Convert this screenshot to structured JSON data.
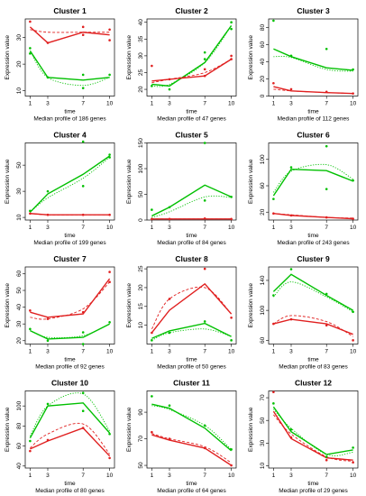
{
  "figure": {
    "colors": {
      "green": "#00c000",
      "red": "#e02020",
      "axis": "#000000"
    },
    "shared": {
      "xlabel": "time",
      "ylabel": "Expression value",
      "x_ticks": [
        1,
        3,
        7,
        10
      ]
    }
  },
  "chart_data": [
    {
      "type": "line",
      "title": "Cluster 1",
      "subtitle": "Median profile of  186  genes",
      "xlabel": "time",
      "ylabel": "Expression value",
      "x": [
        1,
        3,
        7,
        10
      ],
      "ylim": [
        8,
        37
      ],
      "yticks": [
        10,
        20,
        30
      ],
      "series": [
        {
          "color": "green",
          "values": [
            25,
            15,
            14,
            15
          ],
          "smooth": [
            25,
            15,
            12,
            15
          ]
        },
        {
          "color": "red",
          "values": [
            34,
            28,
            32,
            31
          ],
          "smooth": [
            33,
            32,
            32,
            32
          ]
        }
      ],
      "points": [
        {
          "color": "green",
          "xy": [
            [
              1,
              26
            ],
            [
              1,
              24
            ],
            [
              3,
              15
            ],
            [
              7,
              16
            ],
            [
              7,
              11
            ],
            [
              10,
              16
            ]
          ]
        },
        {
          "color": "red",
          "xy": [
            [
              1,
              36
            ],
            [
              3,
              28
            ],
            [
              7,
              34
            ],
            [
              7,
              31
            ],
            [
              10,
              33
            ],
            [
              10,
              29
            ]
          ]
        }
      ]
    },
    {
      "type": "line",
      "title": "Cluster 2",
      "subtitle": "Median profile of  47  genes",
      "xlabel": "time",
      "ylabel": "Expression value",
      "x": [
        1,
        3,
        7,
        10
      ],
      "ylim": [
        18,
        41
      ],
      "yticks": [
        20,
        25,
        30,
        35,
        40
      ],
      "series": [
        {
          "color": "green",
          "values": [
            21.5,
            21,
            28,
            39
          ],
          "smooth": [
            21,
            21.5,
            28,
            39
          ]
        },
        {
          "color": "red",
          "values": [
            22.5,
            23,
            24,
            29
          ],
          "smooth": [
            22,
            23,
            25,
            29
          ]
        }
      ],
      "points": [
        {
          "color": "green",
          "xy": [
            [
              1,
              21
            ],
            [
              3,
              20
            ],
            [
              7,
              31
            ],
            [
              7,
              29
            ],
            [
              10,
              40
            ],
            [
              10,
              38
            ]
          ]
        },
        {
          "color": "red",
          "xy": [
            [
              1,
              27
            ],
            [
              3,
              23
            ],
            [
              7,
              26
            ],
            [
              7,
              24
            ],
            [
              10,
              30
            ],
            [
              10,
              29
            ]
          ]
        }
      ]
    },
    {
      "type": "line",
      "title": "Cluster 3",
      "subtitle": "Median profile of  112  genes",
      "xlabel": "time",
      "ylabel": "Expression value",
      "x": [
        1,
        3,
        7,
        10
      ],
      "ylim": [
        0,
        90
      ],
      "yticks": [
        0,
        20,
        40,
        60,
        80
      ],
      "series": [
        {
          "color": "green",
          "values": [
            55,
            46,
            33,
            30
          ],
          "smooth": [
            46,
            45,
            31,
            29
          ]
        },
        {
          "color": "red",
          "values": [
            11,
            6,
            4,
            3
          ],
          "smooth": [
            8,
            6,
            4,
            3
          ]
        }
      ],
      "points": [
        {
          "color": "green",
          "xy": [
            [
              1,
              88
            ],
            [
              3,
              47
            ],
            [
              7,
              55
            ],
            [
              10,
              31
            ]
          ]
        },
        {
          "color": "red",
          "xy": [
            [
              1,
              15
            ],
            [
              3,
              8
            ],
            [
              7,
              5
            ],
            [
              10,
              3
            ]
          ]
        }
      ]
    },
    {
      "type": "line",
      "title": "Cluster 4",
      "subtitle": "Median profile of  199  genes",
      "xlabel": "time",
      "ylabel": "Expression value",
      "x": [
        1,
        3,
        7,
        10
      ],
      "ylim": [
        8,
        67
      ],
      "yticks": [
        10,
        30,
        50
      ],
      "series": [
        {
          "color": "green",
          "values": [
            14,
            28,
            43,
            57
          ],
          "smooth": [
            14,
            25,
            40,
            56
          ]
        },
        {
          "color": "red",
          "values": [
            13,
            12,
            12,
            12
          ],
          "smooth": [
            13,
            12,
            12,
            12
          ]
        }
      ],
      "points": [
        {
          "color": "green",
          "xy": [
            [
              1,
              15
            ],
            [
              3,
              30
            ],
            [
              7,
              68
            ],
            [
              7,
              34
            ],
            [
              10,
              58
            ],
            [
              10,
              56
            ]
          ]
        },
        {
          "color": "red",
          "xy": [
            [
              1,
              13
            ],
            [
              3,
              12
            ],
            [
              7,
              12
            ],
            [
              10,
              12
            ]
          ]
        }
      ]
    },
    {
      "type": "line",
      "title": "Cluster 5",
      "subtitle": "Median profile of  84  genes",
      "xlabel": "time",
      "ylabel": "Expression value",
      "x": [
        1,
        3,
        7,
        10
      ],
      "ylim": [
        0,
        150
      ],
      "yticks": [
        0,
        50,
        100,
        150
      ],
      "series": [
        {
          "color": "green",
          "values": [
            8,
            25,
            68,
            45
          ],
          "smooth": [
            5,
            16,
            45,
            44
          ]
        },
        {
          "color": "red",
          "values": [
            2,
            2,
            2,
            2
          ],
          "smooth": [
            2,
            2,
            2,
            2
          ]
        }
      ],
      "points": [
        {
          "color": "green",
          "xy": [
            [
              1,
              20
            ],
            [
              3,
              25
            ],
            [
              7,
              150
            ],
            [
              7,
              38
            ],
            [
              10,
              45
            ]
          ]
        },
        {
          "color": "red",
          "xy": [
            [
              1,
              2
            ],
            [
              3,
              2
            ],
            [
              7,
              3
            ],
            [
              10,
              2
            ]
          ]
        }
      ]
    },
    {
      "type": "line",
      "title": "Cluster 6",
      "subtitle": "Median profile of  243  genes",
      "xlabel": "time",
      "ylabel": "Expression value",
      "x": [
        1,
        3,
        7,
        10
      ],
      "ylim": [
        8,
        125
      ],
      "yticks": [
        20,
        60,
        100
      ],
      "series": [
        {
          "color": "green",
          "values": [
            45,
            85,
            83,
            67
          ],
          "smooth": [
            50,
            82,
            92,
            70
          ]
        },
        {
          "color": "red",
          "values": [
            18,
            15,
            12,
            10
          ],
          "smooth": [
            18,
            16,
            12,
            11
          ]
        }
      ],
      "points": [
        {
          "color": "green",
          "xy": [
            [
              1,
              40
            ],
            [
              3,
              88
            ],
            [
              7,
              120
            ],
            [
              7,
              55
            ],
            [
              10,
              68
            ]
          ]
        },
        {
          "color": "red",
          "xy": [
            [
              1,
              18
            ],
            [
              3,
              15
            ],
            [
              7,
              12
            ],
            [
              10,
              10
            ]
          ]
        }
      ]
    },
    {
      "type": "line",
      "title": "Cluster 7",
      "subtitle": "Median profile of  92  genes",
      "xlabel": "time",
      "ylabel": "Expression value",
      "x": [
        1,
        3,
        7,
        10
      ],
      "ylim": [
        18,
        64
      ],
      "yticks": [
        20,
        30,
        40,
        50,
        60
      ],
      "series": [
        {
          "color": "green",
          "values": [
            26,
            21,
            22,
            30
          ],
          "smooth": [
            26,
            22,
            23,
            30
          ]
        },
        {
          "color": "red",
          "values": [
            37,
            34,
            36,
            57
          ],
          "smooth": [
            34,
            33,
            39,
            55
          ]
        }
      ],
      "points": [
        {
          "color": "green",
          "xy": [
            [
              1,
              27
            ],
            [
              3,
              20
            ],
            [
              7,
              25
            ],
            [
              7,
              18
            ],
            [
              10,
              31
            ]
          ]
        },
        {
          "color": "red",
          "xy": [
            [
              1,
              38
            ],
            [
              3,
              33
            ],
            [
              7,
              37
            ],
            [
              10,
              61
            ],
            [
              10,
              55
            ]
          ]
        }
      ]
    },
    {
      "type": "line",
      "title": "Cluster 8",
      "subtitle": "Median profile of  50  genes",
      "xlabel": "time",
      "ylabel": "Expression value",
      "x": [
        1,
        3,
        7,
        10
      ],
      "ylim": [
        5,
        25.5
      ],
      "yticks": [
        10,
        15,
        20,
        25
      ],
      "series": [
        {
          "color": "green",
          "values": [
            6.5,
            8.5,
            10.5,
            7
          ],
          "smooth": [
            6,
            8,
            9,
            7
          ]
        },
        {
          "color": "red",
          "values": [
            8,
            14,
            21,
            13
          ],
          "smooth": [
            9,
            17,
            20,
            13
          ]
        }
      ],
      "points": [
        {
          "color": "green",
          "xy": [
            [
              1,
              6
            ],
            [
              3,
              8
            ],
            [
              7,
              11
            ],
            [
              10,
              6
            ]
          ]
        },
        {
          "color": "red",
          "xy": [
            [
              1,
              8
            ],
            [
              3,
              17
            ],
            [
              7,
              25
            ],
            [
              10,
              12
            ]
          ]
        }
      ]
    },
    {
      "type": "line",
      "title": "Cluster 9",
      "subtitle": "Median profile of  83  genes",
      "xlabel": "time",
      "ylabel": "Expression value",
      "x": [
        1,
        3,
        7,
        10
      ],
      "ylim": [
        55,
        158
      ],
      "yticks": [
        60,
        100,
        140
      ],
      "series": [
        {
          "color": "green",
          "values": [
            125,
            148,
            120,
            100
          ],
          "smooth": [
            118,
            138,
            118,
            98
          ]
        },
        {
          "color": "red",
          "values": [
            82,
            88,
            82,
            68
          ],
          "smooth": [
            82,
            93,
            85,
            65
          ]
        }
      ],
      "points": [
        {
          "color": "green",
          "xy": [
            [
              1,
              120
            ],
            [
              3,
              155
            ],
            [
              7,
              122
            ],
            [
              10,
              98
            ]
          ]
        },
        {
          "color": "red",
          "xy": [
            [
              1,
              82
            ],
            [
              3,
              88
            ],
            [
              7,
              80
            ],
            [
              10,
              60
            ]
          ]
        }
      ]
    },
    {
      "type": "line",
      "title": "Cluster 10",
      "subtitle": "Median profile of  80  genes",
      "xlabel": "time",
      "ylabel": "Expression value",
      "x": [
        1,
        3,
        7,
        10
      ],
      "ylim": [
        38,
        115
      ],
      "yticks": [
        40,
        60,
        80,
        100
      ],
      "series": [
        {
          "color": "green",
          "values": [
            68,
            100,
            103,
            73
          ],
          "smooth": [
            70,
            100,
            112,
            75
          ]
        },
        {
          "color": "red",
          "values": [
            57,
            65,
            78,
            50
          ],
          "smooth": [
            58,
            72,
            82,
            52
          ]
        }
      ],
      "points": [
        {
          "color": "green",
          "xy": [
            [
              1,
              65
            ],
            [
              3,
              102
            ],
            [
              7,
              113
            ],
            [
              7,
              95
            ],
            [
              10,
              72
            ]
          ]
        },
        {
          "color": "red",
          "xy": [
            [
              1,
              55
            ],
            [
              3,
              66
            ],
            [
              7,
              78
            ],
            [
              10,
              48
            ]
          ]
        }
      ]
    },
    {
      "type": "line",
      "title": "Cluster 11",
      "subtitle": "Median profile of  64  genes",
      "xlabel": "time",
      "ylabel": "Expression value",
      "x": [
        1,
        3,
        7,
        10
      ],
      "ylim": [
        48,
        106
      ],
      "yticks": [
        50,
        70,
        90
      ],
      "series": [
        {
          "color": "green",
          "values": [
            96,
            93,
            78,
            61
          ],
          "smooth": [
            95,
            92,
            80,
            62
          ]
        },
        {
          "color": "red",
          "values": [
            73,
            69,
            63,
            50
          ],
          "smooth": [
            74,
            70,
            64,
            52
          ]
        }
      ],
      "points": [
        {
          "color": "green",
          "xy": [
            [
              1,
              102
            ],
            [
              3,
              95
            ],
            [
              7,
              80
            ],
            [
              10,
              62
            ]
          ]
        },
        {
          "color": "red",
          "xy": [
            [
              1,
              75
            ],
            [
              3,
              70
            ],
            [
              7,
              63
            ],
            [
              10,
              50
            ]
          ]
        }
      ]
    },
    {
      "type": "line",
      "title": "Cluster 12",
      "subtitle": "Median profile of  29  genes",
      "xlabel": "time",
      "ylabel": "Expression value",
      "x": [
        1,
        3,
        7,
        10
      ],
      "ylim": [
        8,
        76
      ],
      "yticks": [
        10,
        30,
        50,
        70
      ],
      "series": [
        {
          "color": "green",
          "values": [
            62,
            40,
            20,
            24
          ],
          "smooth": [
            60,
            43,
            20,
            22
          ]
        },
        {
          "color": "red",
          "values": [
            58,
            34,
            17,
            15
          ],
          "smooth": [
            55,
            38,
            18,
            14
          ]
        }
      ],
      "points": [
        {
          "color": "green",
          "xy": [
            [
              1,
              65
            ],
            [
              3,
              42
            ],
            [
              7,
              18
            ],
            [
              10,
              26
            ]
          ]
        },
        {
          "color": "red",
          "xy": [
            [
              1,
              75
            ],
            [
              3,
              35
            ],
            [
              7,
              15
            ],
            [
              10,
              13
            ]
          ]
        }
      ]
    }
  ]
}
